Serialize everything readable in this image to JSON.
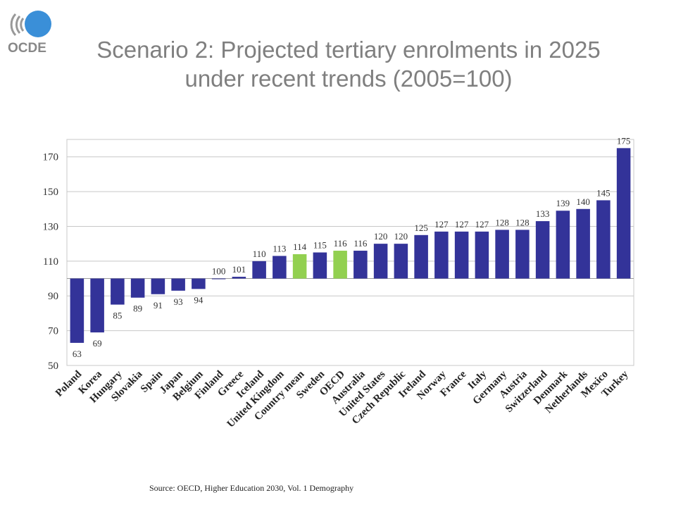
{
  "logo": {
    "text": "OCDE"
  },
  "title": {
    "line1": "Scenario 2: Projected tertiary enrolments in 2025",
    "line2": "under recent trends (2005=100)"
  },
  "source": "Source: OECD, Higher Education 2030, Vol. 1 Demography",
  "colors": {
    "bar": "#333399",
    "highlight": "#92d050",
    "grid": "#c8c8c8",
    "title": "#7f7f7f"
  },
  "chart_data": {
    "type": "bar",
    "baseline": 100,
    "ylim": [
      50,
      180
    ],
    "yticks": [
      50,
      70,
      90,
      110,
      130,
      150,
      170
    ],
    "grid": true,
    "categories": [
      "Poland",
      "Korea",
      "Hungary",
      "Slovakia",
      "Spain",
      "Japan",
      "Belgium",
      "Finland",
      "Greece",
      "Iceland",
      "United Kingdom",
      "Country mean",
      "Sweden",
      "OECD",
      "Australia",
      "United States",
      "Czech Republic",
      "Ireland",
      "Norway",
      "France",
      "Italy",
      "Germany",
      "Austria",
      "Switzerland",
      "Denmark",
      "Netherlands",
      "Mexico",
      "Turkey"
    ],
    "values": [
      63,
      69,
      85,
      89,
      91,
      93,
      94,
      100,
      101,
      110,
      113,
      114,
      115,
      116,
      116,
      120,
      120,
      125,
      127,
      127,
      127,
      128,
      128,
      133,
      139,
      140,
      145,
      175
    ],
    "highlighted": [
      "Country mean",
      "OECD"
    ]
  }
}
